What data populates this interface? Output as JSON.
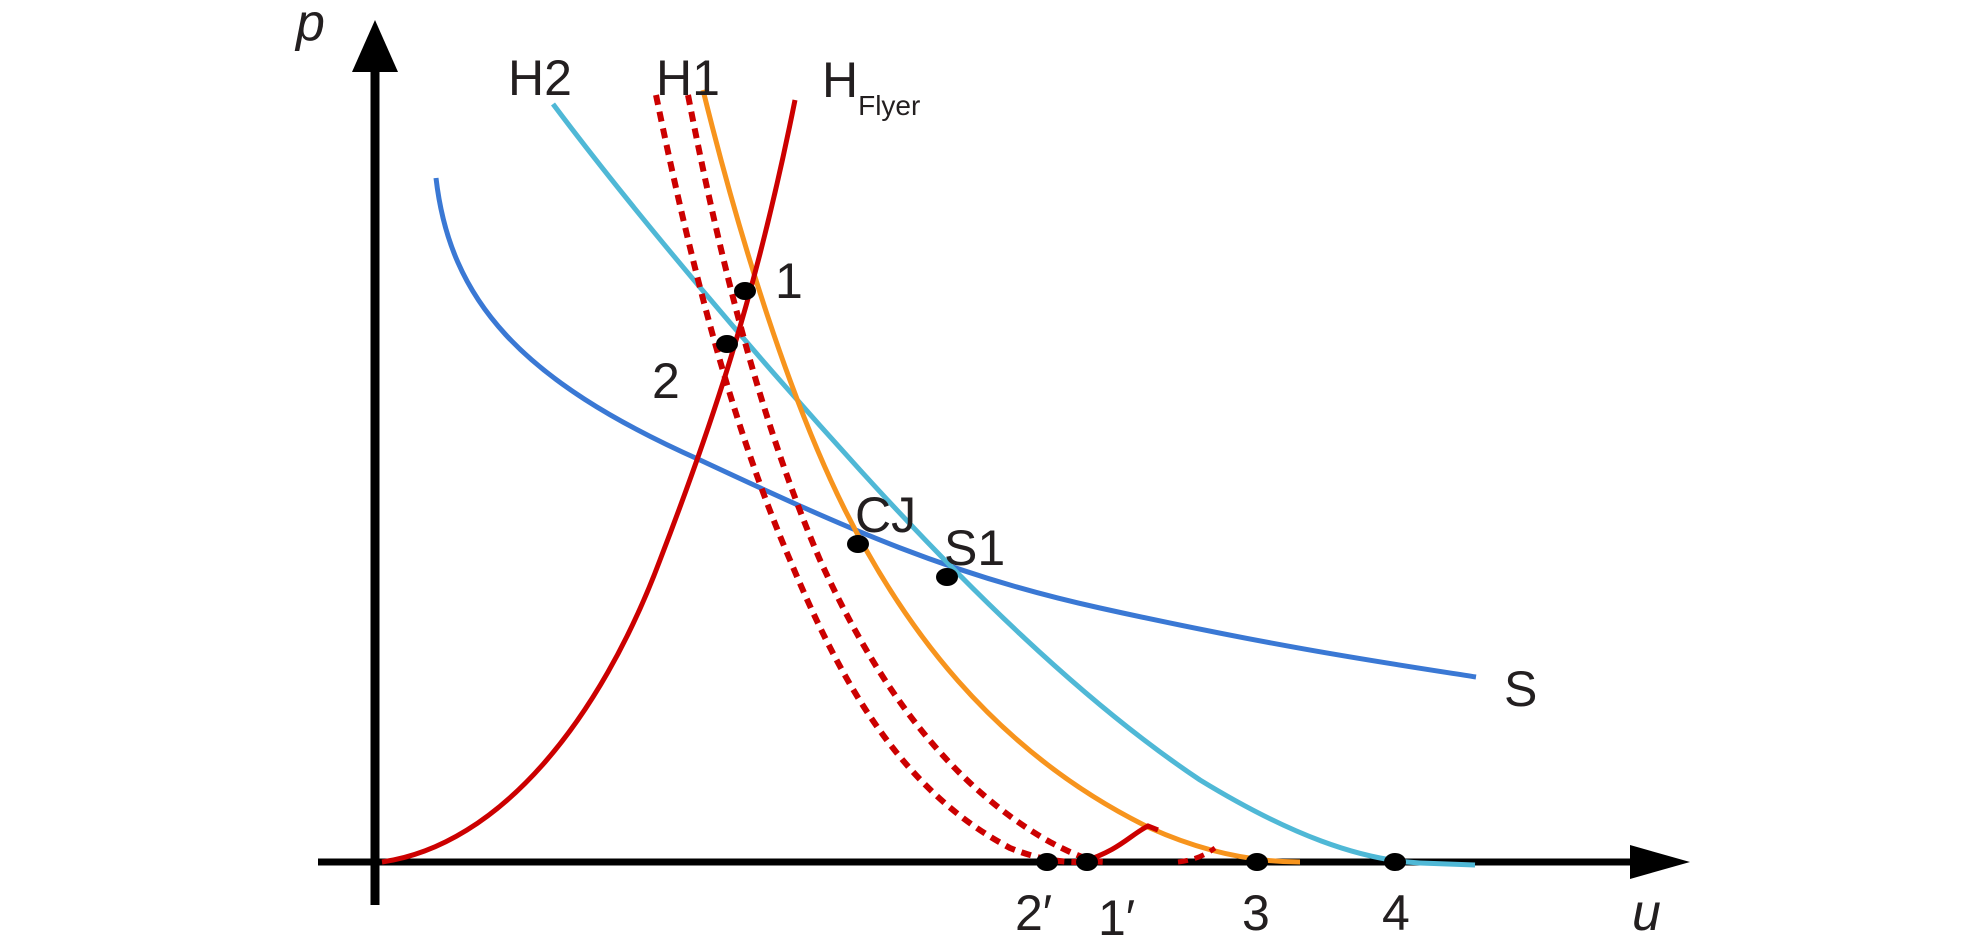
{
  "axes": {
    "y_label": "p",
    "x_label": "u"
  },
  "curves": {
    "h2": {
      "label": "H2",
      "color": "#4fb8d6"
    },
    "h1": {
      "label": "H1",
      "color": "#f7941d"
    },
    "h_flyer": {
      "label": "H",
      "subscript": "Flyer",
      "color": "#cc0000"
    },
    "s": {
      "label": "S",
      "color": "#3a78d4"
    },
    "dashed_reflected": {
      "color": "#cc0000"
    }
  },
  "points": {
    "p1": "1",
    "p2": "2",
    "cj": "CJ",
    "s1": "S1"
  },
  "x_axis_marks": {
    "m2p": "2′",
    "m1p": "1′",
    "m3": "3",
    "m4": "4"
  }
}
